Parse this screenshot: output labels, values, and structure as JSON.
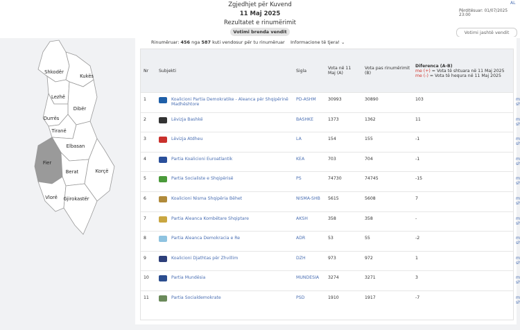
{
  "header": {
    "title": "Zgjedhjet për Kuvend",
    "date": "11 Maj 2025",
    "subtitle": "Rezultatet e rinumërimit",
    "lang": "AL",
    "updated": "Përditësuar: 01/07/2025 23:00",
    "tabs": [
      "Votimi brenda vendit",
      "Votimi jashtë vendit"
    ]
  },
  "status": {
    "prefix": "Rinumëruar:",
    "counted": 456,
    "middle": "nga",
    "total": 587,
    "suffix": "kuti vendosur për tu rinumëruar",
    "info": "Informacione të tjera!"
  },
  "map": {
    "regions": [
      "Shkodër",
      "Kukës",
      "Lezhë",
      "Dibër",
      "Durrës",
      "Tiranë",
      "Elbasan",
      "Fier",
      "Berat",
      "Korçë",
      "Vlorë",
      "Gjirokastër"
    ]
  },
  "table": {
    "headers": [
      "Nr",
      "Subjekti",
      "Sigla",
      "Vota në 11 Maj (A)",
      "Vota pas rinumërimit (B)",
      "Diferenca (A-B)"
    ],
    "legend_plus": {
      "key": "me (+)",
      "text": "= Vota të shtuara në 11 Maj 2025"
    },
    "legend_minus": {
      "key": "me (-)",
      "text": "= Vota të hequra në 11 Maj 2025"
    },
    "more": "më shumë",
    "rows": [
      [
        "1",
        "Koalicioni Partia Demokratike - Aleanca për Shqipërinë Madhështore",
        "PD-ASHM",
        "30993",
        "30890",
        "103"
      ],
      [
        "2",
        "Lëvizja Bashkë",
        "BASHKE",
        "1373",
        "1362",
        "11"
      ],
      [
        "3",
        "Lëvizja Atdheu",
        "LA",
        "154",
        "155",
        "-1"
      ],
      [
        "4",
        "Partia Koalicioni Euroatlantik",
        "KEA",
        "703",
        "704",
        "-1"
      ],
      [
        "5",
        "Partia Socialiste e Shqipërisë",
        "PS",
        "74730",
        "74745",
        "-15"
      ],
      [
        "6",
        "Koalicioni Nisma Shqipëria Bëhet",
        "NISMA-SHB",
        "5615",
        "5608",
        "7"
      ],
      [
        "7",
        "Partia Aleanca Kombëtare Shqiptare",
        "AKSH",
        "358",
        "358",
        "-"
      ],
      [
        "8",
        "Partia Aleanca Demokracia e Re",
        "ADR",
        "53",
        "55",
        "-2"
      ],
      [
        "9",
        "Koalicioni Djathtas për Zhvillim",
        "DZH",
        "973",
        "972",
        "1"
      ],
      [
        "10",
        "Partia Mundësia",
        "MUNDESIA",
        "3274",
        "3271",
        "3"
      ],
      [
        "11",
        "Partia Socialdemokrate",
        "PSD",
        "1910",
        "1917",
        "-7"
      ]
    ]
  }
}
